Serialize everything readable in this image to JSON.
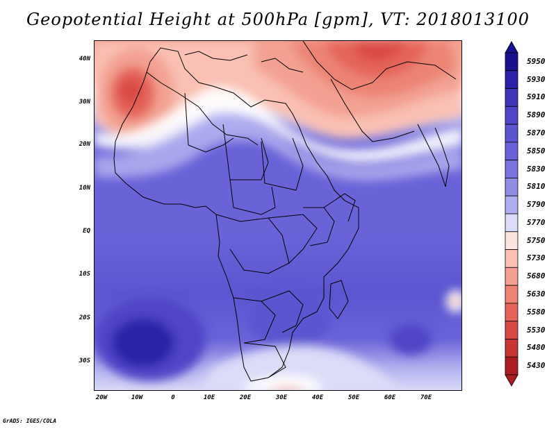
{
  "title": "Geopotential Height at 500hPa [gpm], VT: 2018013100",
  "credit": "GrADS: IGES/COLA",
  "lat_labels": [
    "40N",
    "30N",
    "20N",
    "10N",
    "EQ",
    "10S",
    "20S",
    "30S"
  ],
  "lon_labels": [
    "20W",
    "10W",
    "0",
    "10E",
    "20E",
    "30E",
    "40E",
    "50E",
    "60E",
    "70E"
  ],
  "colorbar": {
    "levels": [
      "5950",
      "5930",
      "5910",
      "5890",
      "5870",
      "5850",
      "5830",
      "5810",
      "5790",
      "5770",
      "5750",
      "5730",
      "5680",
      "5630",
      "5580",
      "5530",
      "5480",
      "5430"
    ],
    "colors": [
      "#1a0f8c",
      "#2b22a8",
      "#3f35b9",
      "#4f45c6",
      "#5c55d0",
      "#6a63d8",
      "#7b76de",
      "#918de5",
      "#b0aeee",
      "#dcdcf8",
      "#fde5df",
      "#f9c0b3",
      "#f3a192",
      "#ec8374",
      "#e4645a",
      "#d94a45",
      "#c83535",
      "#a91e22"
    ]
  }
}
